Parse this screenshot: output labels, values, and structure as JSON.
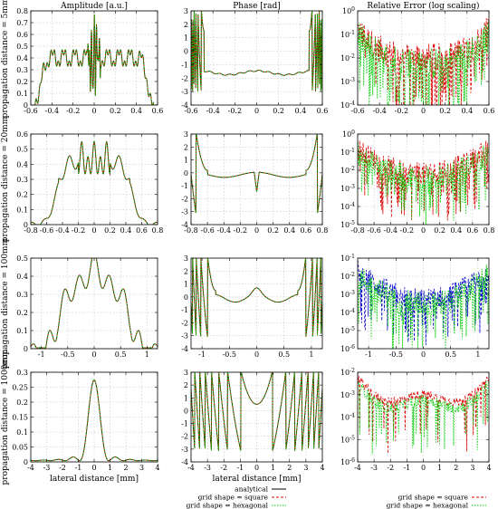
{
  "chart_data": {
    "type": "line",
    "column_titles": [
      "Amplitude [a.u.]",
      "Phase [rad]",
      "Relative Error (log scaling)"
    ],
    "row_labels": [
      "propagation distance = 5mm",
      "propagation distance = 20mm",
      "propagation distance = 100mm",
      "propagation distance = 1000mm"
    ],
    "xlabel": "lateral distance [mm]",
    "grid": true,
    "colors": {
      "analytical": "#000000",
      "square": "#dd0000",
      "hexagonal": "#00cc00",
      "square_blue": "#0000cc"
    },
    "legend_amp_phase": [
      "analytical",
      "grid shape = square",
      "grid shape = hexagonal"
    ],
    "legend_error": [
      "grid shape = square",
      "grid shape = hexagonal"
    ],
    "rows": [
      {
        "xlim": [
          -0.6,
          0.6
        ],
        "xticks": [
          "-0.6",
          "-0.4",
          "-0.2",
          "0",
          "0.2",
          "0.4",
          "0.6"
        ],
        "amp": {
          "ylim": [
            0,
            0.8
          ],
          "yticks": [
            "0",
            "0.1",
            "0.2",
            "0.3",
            "0.4",
            "0.5",
            "0.6",
            "0.7",
            "0.8"
          ],
          "profile": "near"
        },
        "phase": {
          "ylim": [
            -4,
            3
          ],
          "yticks": [
            "-4",
            "-3",
            "-2",
            "-1",
            "0",
            "1",
            "2",
            "3"
          ],
          "profile": "flat"
        },
        "err": {
          "ylim_exp": [
            -4,
            0
          ],
          "yticks": [
            "10^-4",
            "10^-3",
            "10^-2",
            "10^-1",
            "10^0"
          ],
          "secondary": "red"
        }
      },
      {
        "xlim": [
          -0.8,
          0.8
        ],
        "xticks": [
          "-0.8",
          "-0.6",
          "-0.4",
          "-0.2",
          "0",
          "0.2",
          "0.4",
          "0.6",
          "0.8"
        ],
        "amp": {
          "ylim": [
            0,
            0.6
          ],
          "yticks": [
            "0",
            "0.1",
            "0.2",
            "0.3",
            "0.4",
            "0.5",
            "0.6"
          ],
          "profile": "mid"
        },
        "phase": {
          "ylim": [
            -4,
            3
          ],
          "yticks": [
            "-4",
            "-3",
            "-2",
            "-1",
            "0",
            "1",
            "2",
            "3"
          ],
          "profile": "mid"
        },
        "err": {
          "ylim_exp": [
            -5,
            0
          ],
          "yticks": [
            "10^-5",
            "10^-4",
            "10^-3",
            "10^-2",
            "10^-1",
            "10^0"
          ],
          "secondary": "red"
        }
      },
      {
        "xlim": [
          -1.2,
          1.2
        ],
        "xticks": [
          "-1",
          "-0.5",
          "0",
          "0.5",
          "1"
        ],
        "xtick_vals": [
          -1,
          -0.5,
          0,
          0.5,
          1
        ],
        "amp": {
          "ylim": [
            0,
            0.5
          ],
          "yticks": [
            "0",
            "0.1",
            "0.2",
            "0.3",
            "0.4",
            "0.5"
          ],
          "profile": "far"
        },
        "phase": {
          "ylim": [
            -4,
            3
          ],
          "yticks": [
            "-4",
            "-3",
            "-2",
            "-1",
            "0",
            "1",
            "2",
            "3"
          ],
          "profile": "far"
        },
        "err": {
          "ylim_exp": [
            -6,
            -1
          ],
          "yticks": [
            "10^-6",
            "10^-5",
            "10^-4",
            "10^-3",
            "10^-2",
            "10^-1"
          ],
          "secondary": "blue"
        }
      },
      {
        "xlim": [
          -4,
          4
        ],
        "xticks": [
          "-4",
          "-3",
          "-2",
          "-1",
          "0",
          "1",
          "2",
          "3",
          "4"
        ],
        "amp": {
          "ylim": [
            0,
            0.3
          ],
          "yticks": [
            "0",
            "0.05",
            "0.1",
            "0.15",
            "0.2",
            "0.25",
            "0.3"
          ],
          "profile": "airy"
        },
        "phase": {
          "ylim": [
            -4,
            3
          ],
          "yticks": [
            "-4",
            "-3",
            "-2",
            "-1",
            "0",
            "1",
            "2",
            "3"
          ],
          "profile": "wrap"
        },
        "err": {
          "ylim_exp": [
            -6,
            -2
          ],
          "yticks": [
            "10^-6",
            "10^-5",
            "10^-4",
            "10^-3",
            "10^-2"
          ],
          "secondary": "red"
        }
      }
    ]
  }
}
